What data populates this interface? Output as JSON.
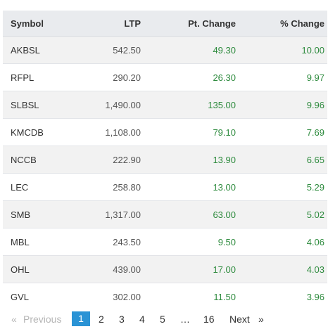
{
  "table": {
    "columns": [
      "Symbol",
      "LTP",
      "Pt. Change",
      "% Change"
    ],
    "rows": [
      {
        "symbol": "AKBSL",
        "ltp": "542.50",
        "pt_change": "49.30",
        "pct_change": "10.00"
      },
      {
        "symbol": "RFPL",
        "ltp": "290.20",
        "pt_change": "26.30",
        "pct_change": "9.97"
      },
      {
        "symbol": "SLBSL",
        "ltp": "1,490.00",
        "pt_change": "135.00",
        "pct_change": "9.96"
      },
      {
        "symbol": "KMCDB",
        "ltp": "1,108.00",
        "pt_change": "79.10",
        "pct_change": "7.69"
      },
      {
        "symbol": "NCCB",
        "ltp": "222.90",
        "pt_change": "13.90",
        "pct_change": "6.65"
      },
      {
        "symbol": "LEC",
        "ltp": "258.80",
        "pt_change": "13.00",
        "pct_change": "5.29"
      },
      {
        "symbol": "SMB",
        "ltp": "1,317.00",
        "pt_change": "63.00",
        "pct_change": "5.02"
      },
      {
        "symbol": "MBL",
        "ltp": "243.50",
        "pt_change": "9.50",
        "pct_change": "4.06"
      },
      {
        "symbol": "OHL",
        "ltp": "439.00",
        "pt_change": "17.00",
        "pct_change": "4.03"
      },
      {
        "symbol": "GVL",
        "ltp": "302.00",
        "pt_change": "11.50",
        "pct_change": "3.96"
      }
    ]
  },
  "pagination": {
    "prev_arrow": "«",
    "prev_label": "Previous",
    "pages": [
      "1",
      "2",
      "3",
      "4",
      "5"
    ],
    "ellipsis": "…",
    "last_page": "16",
    "next_label": "Next",
    "next_arrow": "»",
    "current_page": "1"
  },
  "colors": {
    "header_bg": "#e9ebee",
    "stripe_bg": "#f2f2f2",
    "positive": "#2e8b3e",
    "active_page": "#2a93d5"
  }
}
